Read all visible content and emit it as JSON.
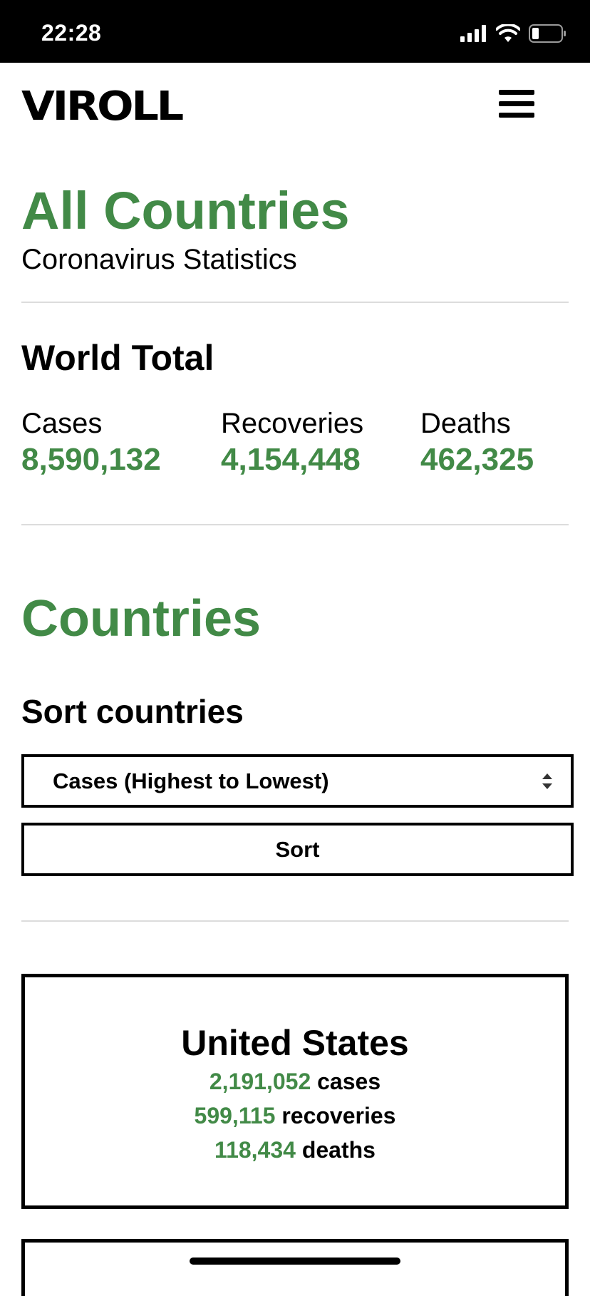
{
  "status_bar": {
    "time": "22:28",
    "icons": [
      "cellular-signal-icon",
      "wifi-icon",
      "battery-icon"
    ]
  },
  "header": {
    "logo_text": "VIROLL",
    "menu_icon": "hamburger-menu-icon"
  },
  "page": {
    "title": "All Countries",
    "subtitle": "Coronavirus Statistics"
  },
  "world_total": {
    "heading": "World Total",
    "stats": [
      {
        "label": "Cases",
        "value": "8,590,132"
      },
      {
        "label": "Recoveries",
        "value": "4,154,448"
      },
      {
        "label": "Deaths",
        "value": "462,325"
      }
    ]
  },
  "countries_section": {
    "title": "Countries",
    "sort_heading": "Sort countries",
    "sort_select": {
      "selected_option": "Cases (Highest to Lowest)",
      "arrows_icon": "select-arrows-icon"
    },
    "sort_button_label": "Sort"
  },
  "countries": [
    {
      "name": "United States",
      "cases": "2,191,052",
      "cases_label": "cases",
      "recoveries": "599,115",
      "recoveries_label": "recoveries",
      "deaths": "118,434",
      "deaths_label": "deaths"
    }
  ],
  "colors": {
    "accent_green": "#428a47",
    "text": "#000000",
    "divider": "#dcdcdc",
    "status_bar_bg": "#000000"
  }
}
